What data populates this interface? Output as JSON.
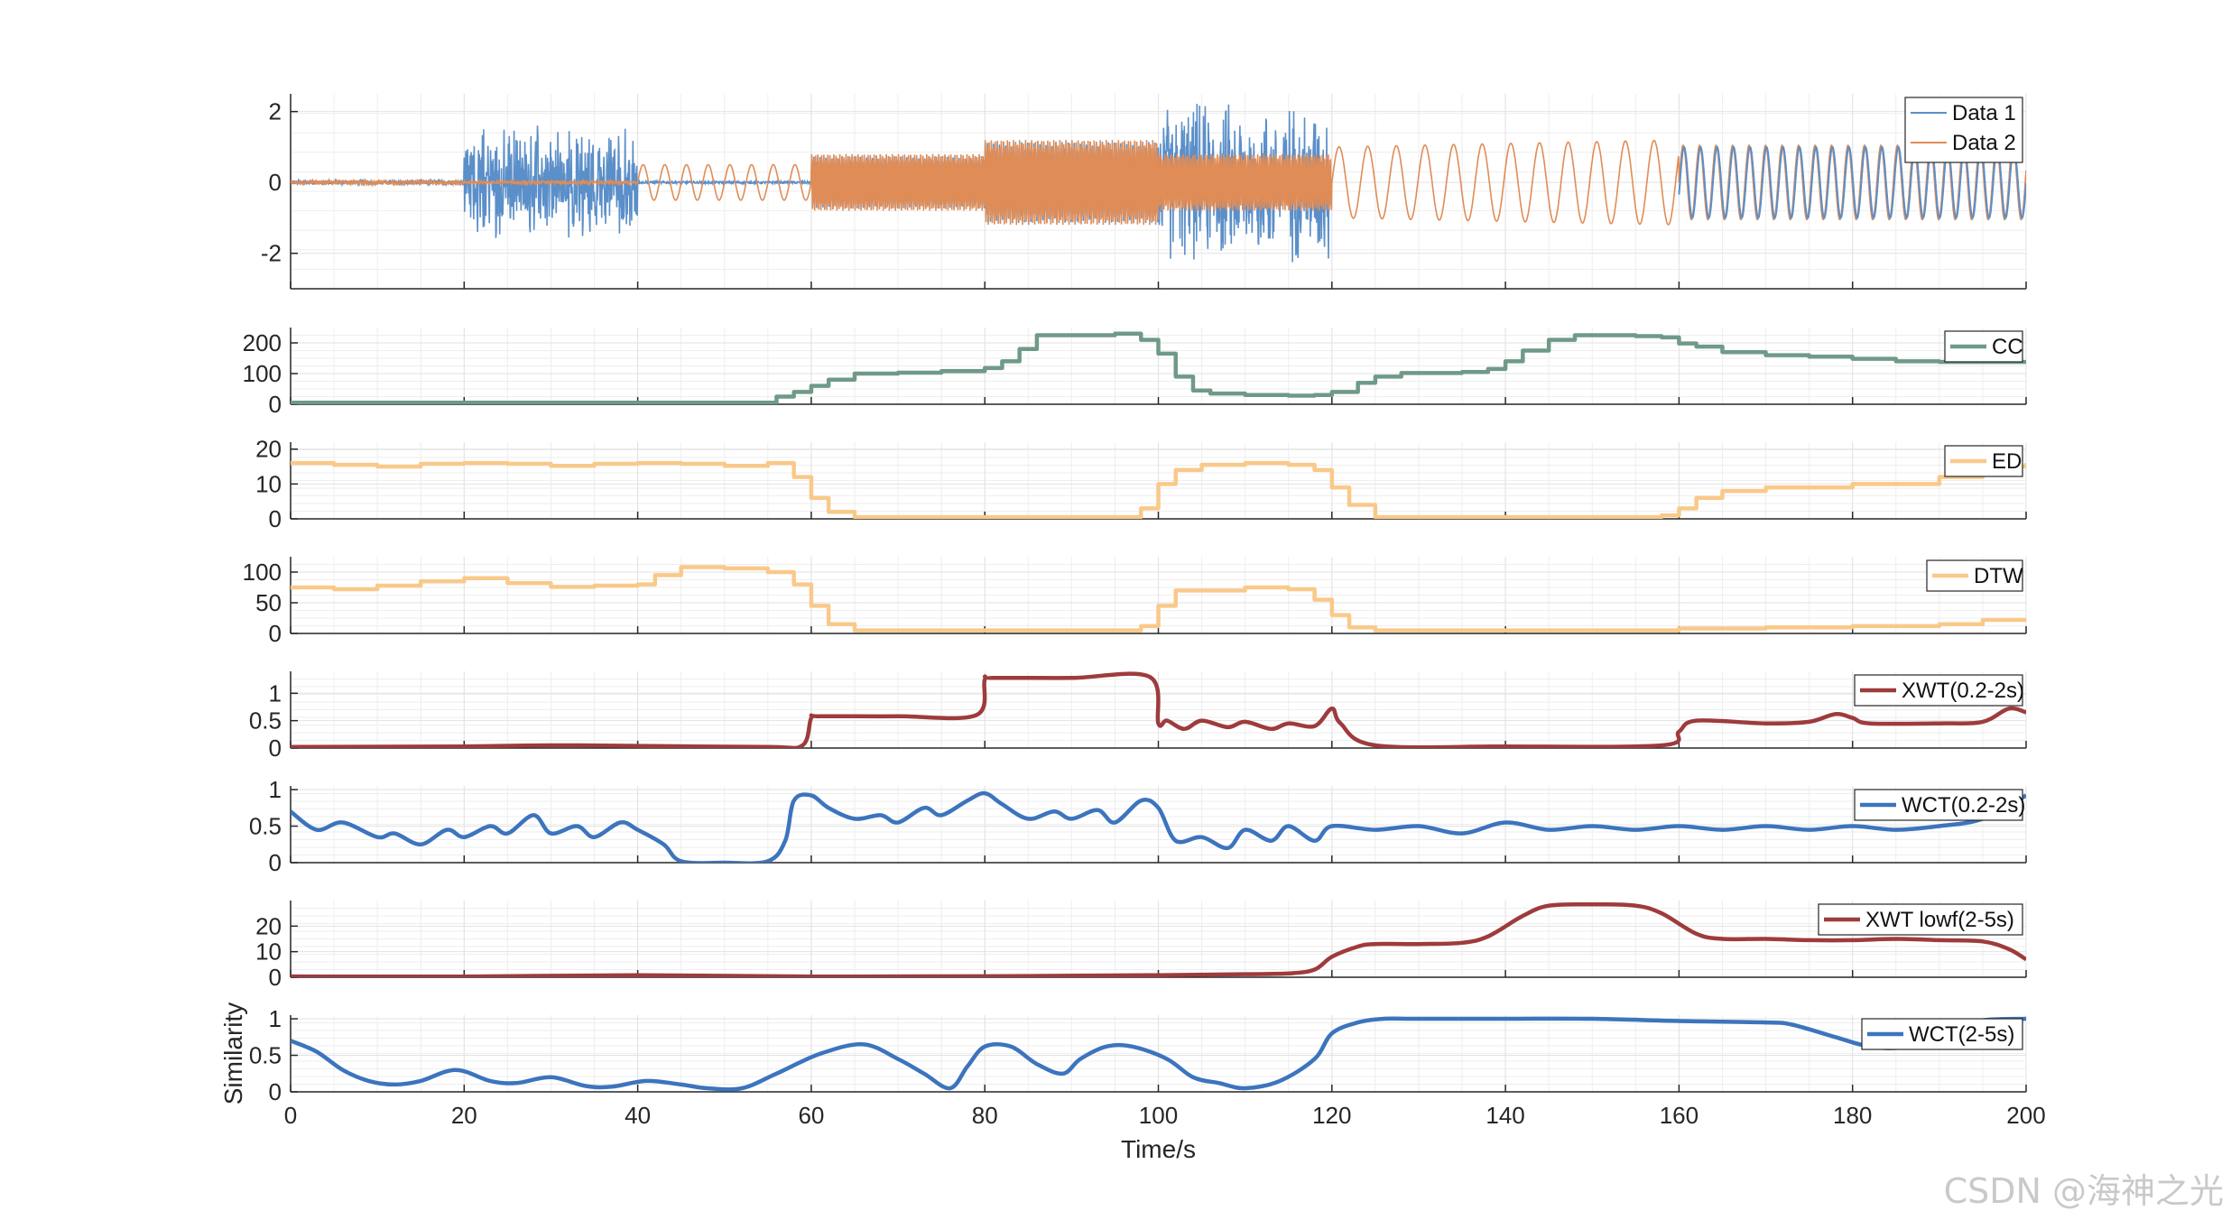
{
  "figure": {
    "xlabel": "Time/s",
    "ylabel": "Similarity",
    "x_ticks": [
      0,
      20,
      40,
      60,
      80,
      100,
      120,
      140,
      160,
      180,
      200
    ],
    "x_range": [
      0,
      200
    ],
    "watermark": "CSDN @海神之光"
  },
  "chart_data": [
    {
      "type": "line",
      "id": "signals",
      "ylim": [
        -3,
        2.5
      ],
      "yticks": [
        -2,
        0,
        2
      ],
      "grid": true,
      "legend": "top-right",
      "series": [
        {
          "name": "Data 1",
          "color": "#5b8fc9"
        },
        {
          "name": "Data 2",
          "color": "#e08c56"
        }
      ],
      "segments": [
        {
          "range": [
            0,
            20
          ],
          "desc": "small noise ~0.05"
        },
        {
          "range": [
            20,
            40
          ],
          "desc": "Data 1 noise ±1.2, Data 2 ~0"
        },
        {
          "range": [
            40,
            60
          ],
          "desc": "Data 2 sine amp 0.5, Data 1 ~0"
        },
        {
          "range": [
            60,
            80
          ],
          "desc": "both dense oscillation amp 0.8"
        },
        {
          "range": [
            80,
            100
          ],
          "desc": "both dense oscillation amp 1.2"
        },
        {
          "range": [
            100,
            120
          ],
          "desc": "Data 1 noise ±2.5, Data 2 amp 0.8"
        },
        {
          "range": [
            120,
            160
          ],
          "desc": "Data 2 growing sine amp 1.0-1.2"
        },
        {
          "range": [
            160,
            200
          ],
          "desc": "both sine amp 1.0"
        }
      ]
    },
    {
      "type": "line",
      "id": "cc",
      "ylim": [
        0,
        250
      ],
      "yticks": [
        0,
        100,
        200
      ],
      "legend": "top-right",
      "series": [
        {
          "name": "CC",
          "color": "#6f9a88",
          "x": [
            0,
            54,
            56,
            58,
            60,
            62,
            65,
            70,
            75,
            80,
            82,
            84,
            86,
            95,
            98,
            100,
            102,
            104,
            106,
            110,
            115,
            118,
            120,
            123,
            125,
            128,
            135,
            138,
            140,
            142,
            145,
            148,
            155,
            158,
            160,
            162,
            165,
            170,
            175,
            180,
            185,
            190,
            200
          ],
          "y": [
            5,
            5,
            25,
            40,
            60,
            80,
            100,
            103,
            108,
            118,
            140,
            180,
            225,
            230,
            210,
            165,
            90,
            45,
            35,
            30,
            28,
            30,
            40,
            70,
            90,
            102,
            105,
            115,
            140,
            175,
            210,
            225,
            222,
            218,
            198,
            188,
            170,
            160,
            155,
            148,
            140,
            138,
            140
          ]
        }
      ]
    },
    {
      "type": "line",
      "id": "ed",
      "ylim": [
        0,
        22
      ],
      "yticks": [
        0,
        10,
        20
      ],
      "legend": "top-right",
      "series": [
        {
          "name": "ED",
          "color": "#f9c98a",
          "x": [
            0,
            5,
            10,
            15,
            20,
            25,
            30,
            35,
            40,
            45,
            50,
            55,
            58,
            60,
            62,
            65,
            95,
            98,
            100,
            102,
            105,
            110,
            115,
            118,
            120,
            122,
            125,
            155,
            158,
            160,
            162,
            165,
            170,
            180,
            190,
            195,
            200
          ],
          "y": [
            16,
            15.5,
            15,
            15.8,
            16,
            15.8,
            15.2,
            15.8,
            16,
            15.8,
            15.2,
            16,
            12,
            6,
            2,
            0.5,
            0.5,
            3,
            10,
            14,
            15.5,
            16,
            15.5,
            14,
            9,
            4,
            0.5,
            0.5,
            1,
            3,
            6,
            8,
            9,
            10,
            12,
            15,
            16
          ]
        }
      ]
    },
    {
      "type": "line",
      "id": "dtw",
      "ylim": [
        0,
        125
      ],
      "yticks": [
        0,
        50,
        100
      ],
      "legend": "top-right",
      "series": [
        {
          "name": "DTW",
          "color": "#f9c98a",
          "x": [
            0,
            5,
            10,
            15,
            20,
            25,
            30,
            35,
            40,
            42,
            45,
            50,
            55,
            58,
            60,
            62,
            65,
            95,
            98,
            100,
            102,
            110,
            115,
            118,
            120,
            122,
            125,
            155,
            160,
            170,
            180,
            190,
            195,
            200
          ],
          "y": [
            75,
            72,
            78,
            85,
            90,
            82,
            76,
            78,
            80,
            95,
            108,
            106,
            100,
            80,
            45,
            15,
            5,
            5,
            12,
            45,
            70,
            75,
            72,
            55,
            30,
            10,
            5,
            5,
            8,
            10,
            12,
            15,
            22,
            25
          ]
        }
      ]
    },
    {
      "type": "line",
      "id": "xwt1",
      "ylim": [
        0,
        1.4
      ],
      "yticks": [
        0,
        0.5,
        1
      ],
      "legend": "top-right",
      "series": [
        {
          "name": "XWT(0.2-2s)",
          "color": "#9e3b3c",
          "x": [
            0,
            20,
            30,
            40,
            55,
            59,
            60,
            61,
            70,
            79,
            80,
            81,
            90,
            99,
            100,
            101,
            103,
            105,
            108,
            110,
            113,
            115,
            118,
            120,
            121,
            125,
            140,
            158,
            160,
            162,
            170,
            175,
            178,
            180,
            182,
            190,
            195,
            198,
            200
          ],
          "y": [
            0.02,
            0.03,
            0.05,
            0.04,
            0.02,
            0.05,
            0.55,
            0.58,
            0.58,
            0.6,
            1.25,
            1.28,
            1.28,
            1.3,
            0.45,
            0.5,
            0.35,
            0.5,
            0.38,
            0.48,
            0.35,
            0.45,
            0.4,
            0.72,
            0.45,
            0.05,
            0.03,
            0.05,
            0.3,
            0.5,
            0.45,
            0.48,
            0.62,
            0.55,
            0.45,
            0.45,
            0.48,
            0.72,
            0.65
          ]
        }
      ]
    },
    {
      "type": "line",
      "id": "wct1",
      "ylim": [
        0,
        1.05
      ],
      "yticks": [
        0,
        0.5,
        1
      ],
      "legend": "top-right",
      "series": [
        {
          "name": "WCT(0.2-2s)",
          "color": "#3c74bd",
          "x": [
            0,
            3,
            6,
            10,
            12,
            15,
            18,
            20,
            23,
            25,
            28,
            30,
            33,
            35,
            38,
            40,
            43,
            45,
            50,
            55,
            57,
            58,
            60,
            62,
            65,
            68,
            70,
            73,
            75,
            78,
            80,
            82,
            85,
            88,
            90,
            93,
            95,
            98,
            100,
            102,
            105,
            108,
            110,
            113,
            115,
            118,
            120,
            125,
            130,
            135,
            140,
            145,
            150,
            155,
            160,
            165,
            170,
            175,
            180,
            185,
            190,
            195,
            200
          ],
          "y": [
            0.7,
            0.45,
            0.55,
            0.35,
            0.4,
            0.25,
            0.45,
            0.35,
            0.5,
            0.4,
            0.65,
            0.4,
            0.5,
            0.35,
            0.55,
            0.45,
            0.25,
            0.02,
            0.0,
            0.02,
            0.3,
            0.85,
            0.92,
            0.75,
            0.6,
            0.65,
            0.55,
            0.75,
            0.65,
            0.85,
            0.95,
            0.8,
            0.6,
            0.7,
            0.6,
            0.72,
            0.55,
            0.85,
            0.75,
            0.3,
            0.35,
            0.2,
            0.45,
            0.3,
            0.5,
            0.3,
            0.5,
            0.45,
            0.5,
            0.4,
            0.55,
            0.45,
            0.5,
            0.45,
            0.5,
            0.45,
            0.5,
            0.45,
            0.5,
            0.45,
            0.5,
            0.6,
            0.92
          ]
        }
      ]
    },
    {
      "type": "line",
      "id": "xwt2",
      "ylim": [
        0,
        30
      ],
      "yticks": [
        0,
        10,
        20
      ],
      "legend": "top-right",
      "series": [
        {
          "name": "XWT lowf(2-5s)",
          "color": "#9e3b3c",
          "x": [
            0,
            20,
            40,
            60,
            80,
            100,
            110,
            115,
            118,
            120,
            123,
            125,
            130,
            135,
            138,
            142,
            145,
            150,
            155,
            158,
            162,
            165,
            170,
            175,
            180,
            185,
            190,
            195,
            198,
            200
          ],
          "y": [
            0.3,
            0.3,
            0.8,
            0.3,
            0.4,
            0.8,
            1.2,
            1.5,
            3,
            8,
            12,
            13,
            13,
            13.5,
            16,
            24,
            28,
            28.5,
            28,
            25,
            17,
            15,
            15,
            14.5,
            14.5,
            15,
            14.5,
            14,
            11,
            7
          ]
        }
      ]
    },
    {
      "type": "line",
      "id": "wct2",
      "ylim": [
        0,
        1.05
      ],
      "yticks": [
        0,
        0.5,
        1
      ],
      "legend": "top-right",
      "series": [
        {
          "name": "WCT(2-5s)",
          "color": "#3c74bd",
          "x": [
            0,
            3,
            6,
            9,
            12,
            15,
            19,
            23,
            26,
            30,
            34,
            37,
            41,
            45,
            48,
            52,
            56,
            61,
            66,
            70,
            73,
            76,
            78,
            80,
            83,
            86,
            89,
            91,
            94,
            97,
            101,
            104,
            107,
            110,
            114,
            118,
            120,
            123,
            126,
            130,
            140,
            150,
            160,
            170,
            173,
            178,
            182,
            186,
            190,
            195,
            200
          ],
          "y": [
            0.7,
            0.55,
            0.3,
            0.15,
            0.1,
            0.15,
            0.3,
            0.15,
            0.12,
            0.2,
            0.08,
            0.07,
            0.15,
            0.1,
            0.05,
            0.05,
            0.25,
            0.52,
            0.65,
            0.45,
            0.25,
            0.05,
            0.35,
            0.62,
            0.62,
            0.38,
            0.25,
            0.45,
            0.62,
            0.62,
            0.45,
            0.2,
            0.12,
            0.05,
            0.15,
            0.45,
            0.8,
            0.95,
            1.0,
            1.0,
            1.0,
            1.0,
            0.97,
            0.95,
            0.92,
            0.75,
            0.62,
            0.62,
            0.85,
            0.98,
            1.0
          ]
        }
      ]
    }
  ]
}
